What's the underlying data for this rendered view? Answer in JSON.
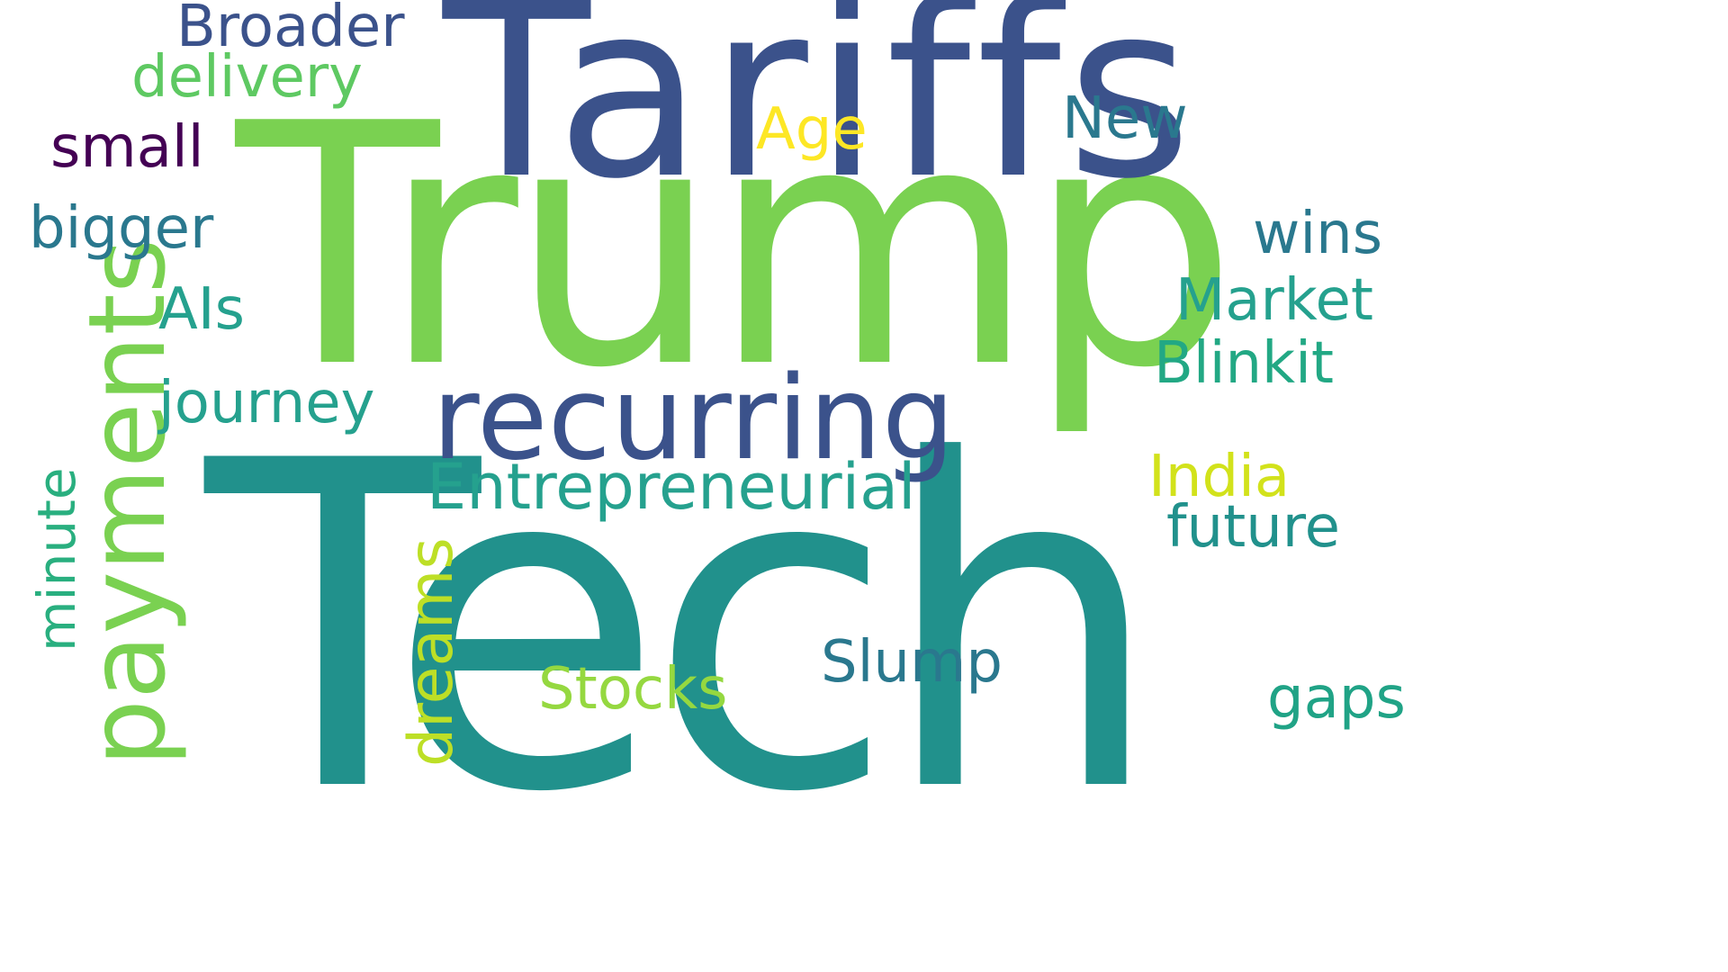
{
  "words": [
    {
      "key": "tech",
      "text": "Tech",
      "color": "#21918c"
    },
    {
      "key": "trump",
      "text": "Trump",
      "color": "#7ad151"
    },
    {
      "key": "tariffs",
      "text": "Tariffs",
      "color": "#3b528b"
    },
    {
      "key": "recurring",
      "text": "recurring",
      "color": "#3b528b"
    },
    {
      "key": "payments",
      "text": "payments",
      "color": "#7ad151"
    },
    {
      "key": "entrepreneurial",
      "text": "Entrepreneurial",
      "color": "#25a18e"
    },
    {
      "key": "broader",
      "text": "Broader",
      "color": "#3b528b"
    },
    {
      "key": "delivery",
      "text": "delivery",
      "color": "#5ec962"
    },
    {
      "key": "small",
      "text": "small",
      "color": "#440154"
    },
    {
      "key": "bigger",
      "text": "bigger",
      "color": "#2a788e"
    },
    {
      "key": "ais",
      "text": "AIs",
      "color": "#25a18e"
    },
    {
      "key": "journey",
      "text": "journey",
      "color": "#25a18e"
    },
    {
      "key": "minute",
      "text": "minute",
      "color": "#29af7f"
    },
    {
      "key": "dreams",
      "text": "dreams",
      "color": "#bddf26"
    },
    {
      "key": "stocks",
      "text": "Stocks",
      "color": "#95d840"
    },
    {
      "key": "slump",
      "text": "Slump",
      "color": "#2a788e"
    },
    {
      "key": "age",
      "text": "Age",
      "color": "#fde725"
    },
    {
      "key": "new",
      "text": "New",
      "color": "#2a788e"
    },
    {
      "key": "wins",
      "text": "wins",
      "color": "#2a788e"
    },
    {
      "key": "market",
      "text": "Market",
      "color": "#25a18e"
    },
    {
      "key": "blinkit",
      "text": "Blinkit",
      "color": "#22a884"
    },
    {
      "key": "india",
      "text": "India",
      "color": "#d2e21b"
    },
    {
      "key": "future",
      "text": "future",
      "color": "#21918c"
    },
    {
      "key": "gaps",
      "text": "gaps",
      "color": "#20a386"
    }
  ]
}
